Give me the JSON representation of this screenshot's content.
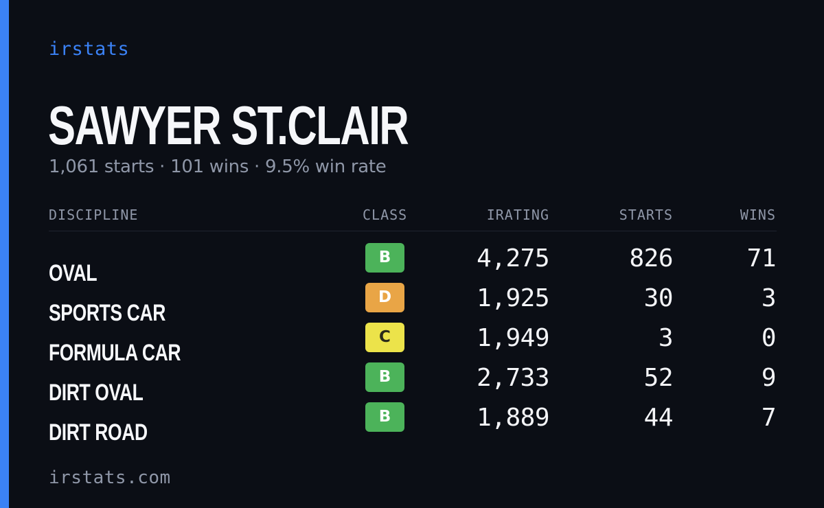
{
  "theme": {
    "accent": "#3b82f6",
    "background": "#0b0e15"
  },
  "brand": {
    "label": "irstats"
  },
  "driver": {
    "name": "SAWYER ST.CLAIR",
    "summary": "1,061 starts · 101 wins · 9.5% win rate"
  },
  "table": {
    "headers": {
      "discipline": "DISCIPLINE",
      "class": "CLASS",
      "irating": "IRATING",
      "starts": "STARTS",
      "wins": "WINS"
    },
    "rows": [
      {
        "discipline": "OVAL",
        "class": "B",
        "class_color": "#4cb35a",
        "irating": "4,275",
        "starts": "826",
        "wins": "71"
      },
      {
        "discipline": "SPORTS CAR",
        "class": "D",
        "class_color": "#e9a546",
        "irating": "1,925",
        "starts": "30",
        "wins": "3"
      },
      {
        "discipline": "FORMULA CAR",
        "class": "C",
        "class_color": "#ece34a",
        "irating": "1,949",
        "starts": "3",
        "wins": "0"
      },
      {
        "discipline": "DIRT OVAL",
        "class": "B",
        "class_color": "#4cb35a",
        "irating": "2,733",
        "starts": "52",
        "wins": "9"
      },
      {
        "discipline": "DIRT ROAD",
        "class": "B",
        "class_color": "#4cb35a",
        "irating": "1,889",
        "starts": "44",
        "wins": "7"
      }
    ]
  },
  "footer": {
    "domain": "irstats.com"
  }
}
